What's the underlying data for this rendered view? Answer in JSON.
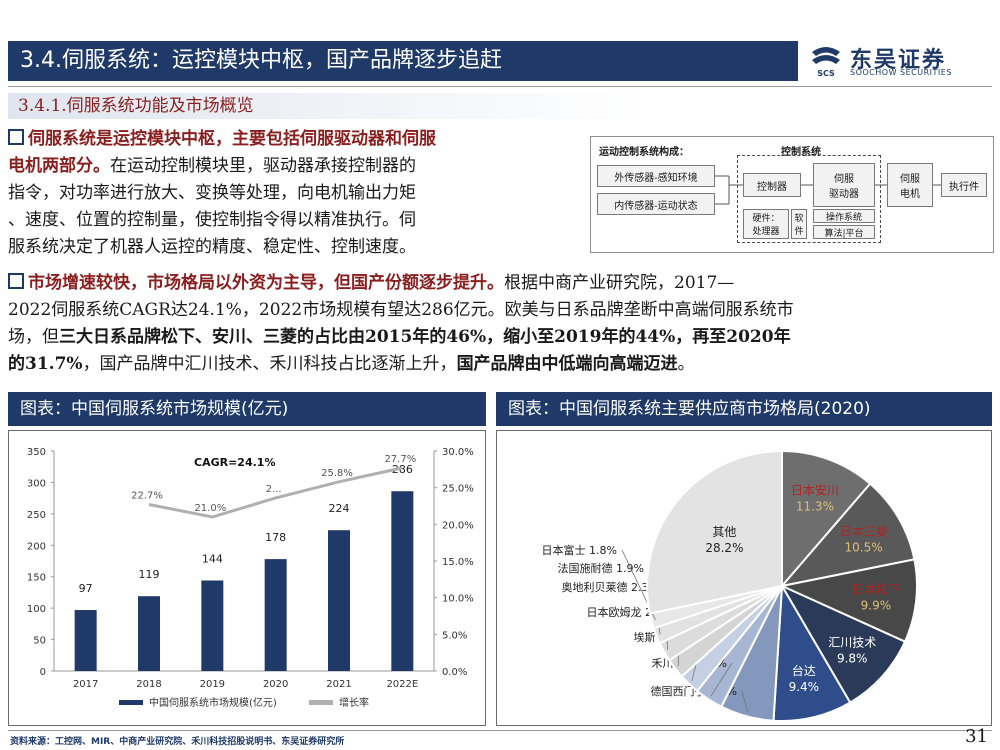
{
  "header": {
    "title": "3.4.伺服系统：运控模块中枢，国产品牌逐步追赶",
    "logo_cn": "东吴证券",
    "logo_en": "SOOCHOW SECURITIES",
    "logo_mark": "SCS"
  },
  "section": {
    "subheading": "3.4.1.伺服系统功能及市场概览"
  },
  "para1": {
    "lead": "伺服系统是运控模块中枢，主要包括伺服驱动器和伺服电机两部分。",
    "line1": "伺服系统是运控模块中枢，主要包括伺服驱动器和伺服",
    "line2_bold": "电机两部分。",
    "line2_rest": "在运动控制模块里，驱动器承接控制器的",
    "line3": "指令，对功率进行放大、变换等处理，向电机输出力矩",
    "line4": "、速度、位置的控制量，使控制指令得以精准执行。伺",
    "line5": "服系统决定了机器人运控的精度、稳定性、控制速度。"
  },
  "diagram": {
    "title": "运动控制系统构成：",
    "control_group": "控制系统",
    "sensor_external": "外传感器-感知环境",
    "sensor_internal": "内传感器-运动状态",
    "controller": "控制器",
    "servo_driver_l1": "伺服",
    "servo_driver_l2": "驱动器",
    "servo_motor_l1": "伺服",
    "servo_motor_l2": "电机",
    "actuator": "执行件",
    "hw_l1": "硬件：",
    "hw_l2": "处理器",
    "sw_l1": "软",
    "sw_l2": "件",
    "os": "操作系统",
    "algo": "算法|平台"
  },
  "para2": {
    "line1_hl": "市场增速较快，市场格局以外资为主导，但国产份额逐步提升。",
    "line1_rest": "根据中商产业研究院，2017—",
    "line2": "2022伺服系统CAGR达24.1%，2022市场规模有望达286亿元。欧美与日系品牌垄断中高端伺服系统市",
    "line3_a": "场，但",
    "line3_b": "三大日系品牌松下、安川、三菱的占比由2015年的46%，缩小至2019年的44%，再至2020年",
    "line4_a": "的31.7%",
    "line4_b": "，国产品牌中汇川技术、禾川科技占比逐渐上升，",
    "line4_c": "国产品牌由中低端向高端迈进",
    "line4_d": "。"
  },
  "panels": {
    "left_title": "图表：中国伺服系统市场规模(亿元)",
    "right_title": "图表：中国伺服系统主要供应商市场格局(2020)"
  },
  "chart_data": [
    {
      "type": "bar",
      "categories": [
        "2017",
        "2018",
        "2019",
        "2020",
        "2021",
        "2022E"
      ],
      "series": [
        {
          "name": "中国伺服系统市场规模(亿元)",
          "values": [
            97,
            119,
            144,
            178,
            224,
            286
          ],
          "color": "#1f3a68"
        },
        {
          "name": "增长率",
          "values": [
            null,
            22.7,
            21.0,
            23.6,
            25.8,
            27.7
          ],
          "labels": [
            "",
            "22.7%",
            "21.0%",
            "2...",
            "25.8%",
            "27.7%"
          ],
          "color": "#b0b0b0",
          "type": "line",
          "axis": "right"
        }
      ],
      "annotation": "CAGR=24.1%",
      "ylim": [
        0,
        350
      ],
      "y_ticks": [
        "0",
        "50",
        "100",
        "150",
        "200",
        "250",
        "300",
        "350"
      ],
      "y2lim": [
        0,
        30
      ],
      "y2_ticks": [
        "0.0%",
        "5.0%",
        "10.0%",
        "15.0%",
        "20.0%",
        "25.0%",
        "30.0%"
      ]
    },
    {
      "type": "pie",
      "slices": [
        {
          "name": "日本安川",
          "value": 11.3,
          "label": "11.3%",
          "color": "#6e6e6e"
        },
        {
          "name": "日本三菱",
          "value": 10.5,
          "label": "10.5%",
          "color": "#595959"
        },
        {
          "name": "日本松下",
          "value": 9.9,
          "label": "9.9%",
          "color": "#484848"
        },
        {
          "name": "汇川技术",
          "value": 9.8,
          "label": "9.8%",
          "color": "#2a3a58"
        },
        {
          "name": "台达",
          "value": 9.4,
          "label": "9.4%",
          "color": "#2e4d8a"
        },
        {
          "name": "德国西门子",
          "value": 6.4,
          "label": "6.4%",
          "color": "#8497bd"
        },
        {
          "name": "禾川科技",
          "value": 3.4,
          "label": "3.4%",
          "color": "#a7b6d3"
        },
        {
          "name": "埃斯顿",
          "value": 2.5,
          "label": "2.5%",
          "color": "#c5d0e4"
        },
        {
          "name": "日本欧姆龙",
          "value": 2.4,
          "label": "2.4%",
          "color": "#d4d4d4"
        },
        {
          "name": "奥地利贝莱德",
          "value": 2.3,
          "label": "2.3%",
          "color": "#dcdcdc"
        },
        {
          "name": "法国施耐德",
          "value": 1.9,
          "label": "1.9%",
          "color": "#e2e2e2"
        },
        {
          "name": "日本富士",
          "value": 1.8,
          "label": "1.8%",
          "color": "#e8e8e8"
        },
        {
          "name": "其他",
          "value": 28.2,
          "label": "28.2%",
          "color": "#e3e3e3"
        }
      ]
    }
  ],
  "footer": {
    "source": "资料来源：工控网、MIR、中商产业研究院、禾川科技招股说明书、东吴证券研究所",
    "page": "31"
  }
}
